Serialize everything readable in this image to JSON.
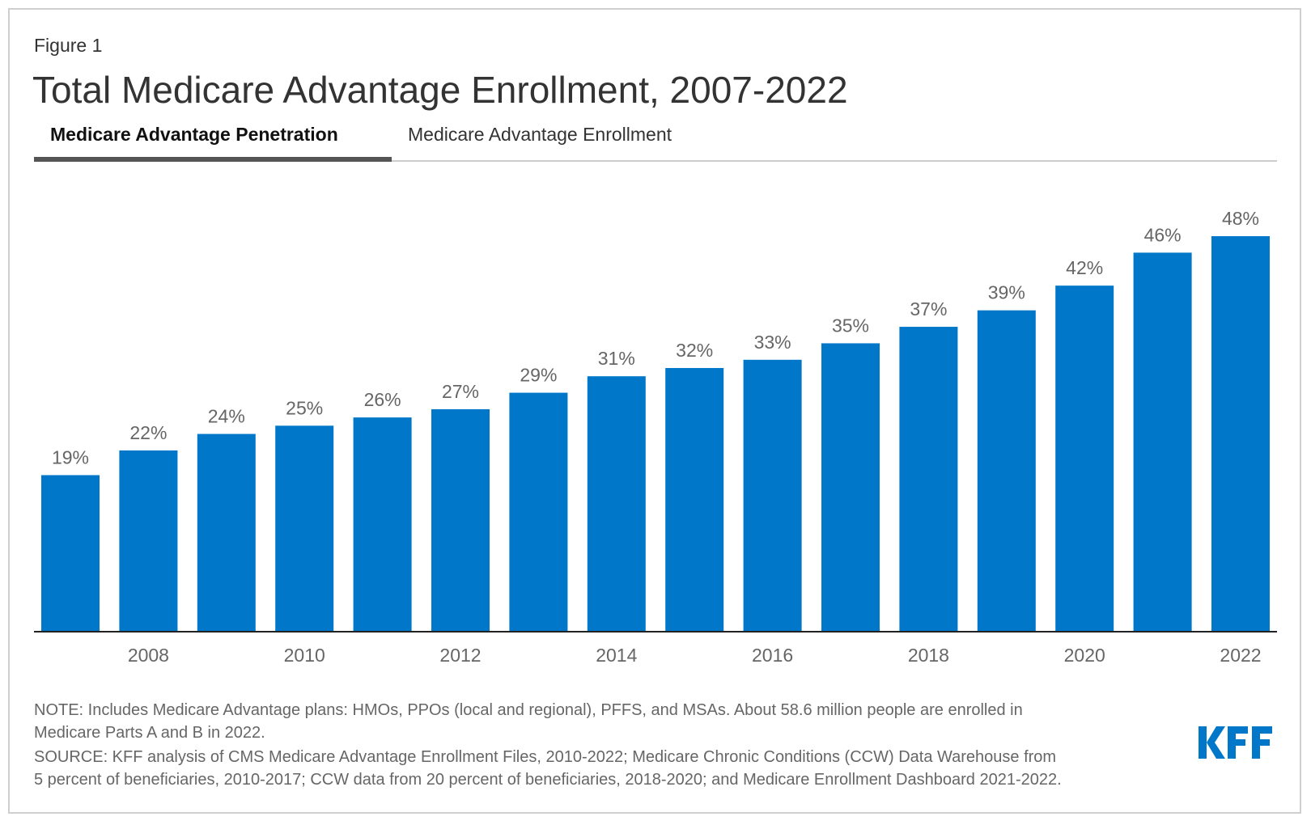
{
  "figure_label": "Figure 1",
  "title": "Total Medicare Advantage Enrollment, 2007-2022",
  "tabs": [
    {
      "label": "Medicare Advantage Penetration",
      "active": true
    },
    {
      "label": "Medicare Advantage Enrollment",
      "active": false
    }
  ],
  "chart_data": {
    "type": "bar",
    "categories": [
      "2007",
      "2008",
      "2009",
      "2010",
      "2011",
      "2012",
      "2013",
      "2014",
      "2015",
      "2016",
      "2017",
      "2018",
      "2019",
      "2020",
      "2021",
      "2022"
    ],
    "values": [
      19,
      22,
      24,
      25,
      26,
      27,
      29,
      31,
      32,
      33,
      35,
      37,
      39,
      42,
      46,
      48
    ],
    "data_labels": [
      "19%",
      "22%",
      "24%",
      "25%",
      "26%",
      "27%",
      "29%",
      "31%",
      "32%",
      "33%",
      "35%",
      "37%",
      "39%",
      "42%",
      "46%",
      "48%"
    ],
    "x_tick_labels": [
      "2008",
      "2010",
      "2012",
      "2014",
      "2016",
      "2018",
      "2020",
      "2022"
    ],
    "ylim": [
      0,
      48
    ],
    "grid": false,
    "bar_color": "#0077c8",
    "label_color": "#666666"
  },
  "notes": [
    "NOTE: Includes Medicare Advantage plans: HMOs, PPOs (local and regional), PFFS, and MSAs. About 58.6 million people are enrolled in",
    "Medicare Parts A and B in 2022.",
    "SOURCE: KFF analysis of CMS Medicare Advantage Enrollment Files, 2010-2022; Medicare Chronic Conditions (CCW) Data Warehouse from",
    "5 percent of beneficiaries, 2010-2017; CCW data from 20 percent of beneficiaries, 2018-2020; and Medicare Enrollment Dashboard 2021-2022."
  ],
  "logo": {
    "text": "KFF",
    "color": "#0077c8"
  }
}
